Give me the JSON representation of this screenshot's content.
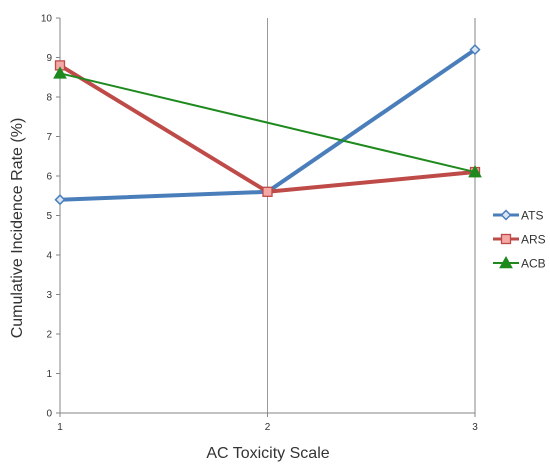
{
  "chart_data": {
    "type": "line",
    "title": "",
    "xlabel": "AC Toxicity Scale",
    "ylabel": "Cumulative Incidence Rate (%)",
    "x": [
      1,
      2,
      3
    ],
    "xticks": [
      "1",
      "2",
      "3"
    ],
    "ylim": [
      0,
      10
    ],
    "yticks": [
      "0",
      "1",
      "2",
      "3",
      "4",
      "5",
      "6",
      "7",
      "8",
      "9",
      "10"
    ],
    "grid": "vertical line at x = 2 only",
    "legend": "right",
    "series": [
      {
        "name": "ATS",
        "values": [
          5.4,
          5.6,
          9.2
        ],
        "color": "#4a7ebb",
        "marker": "diamond",
        "stroke_weight": "thick"
      },
      {
        "name": "ARS",
        "values": [
          8.8,
          5.6,
          6.1
        ],
        "color": "#be4b48",
        "marker": "square",
        "stroke_weight": "thick"
      },
      {
        "name": "ACB",
        "values": [
          8.6,
          null,
          6.1
        ],
        "color": "#1e8a1e",
        "marker": "triangle",
        "stroke_weight": "thin"
      }
    ]
  }
}
